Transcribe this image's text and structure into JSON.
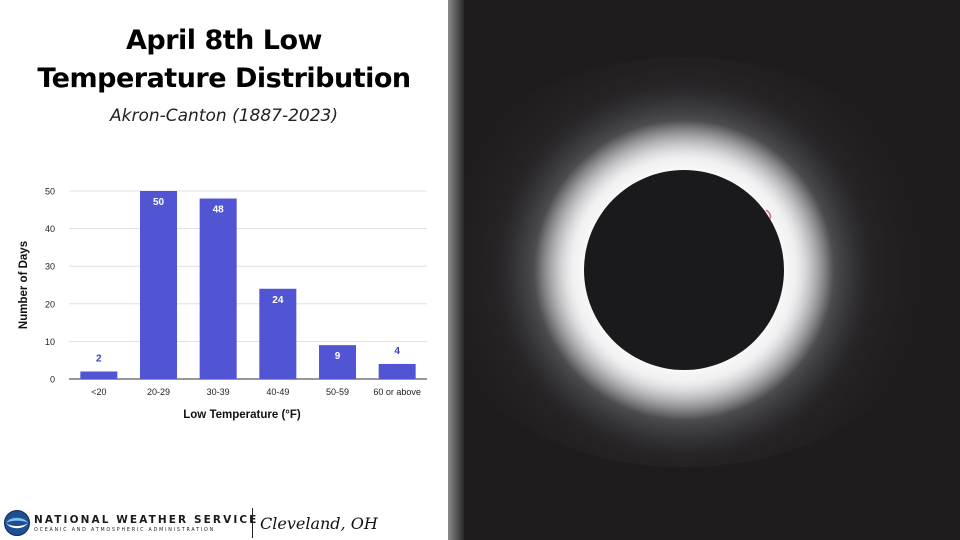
{
  "slide": {
    "title_line1": "April 8th Low",
    "title_line2": "Temperature Distribution",
    "subtitle": "Akron-Canton (1887-2023)"
  },
  "footer": {
    "agency": "NATIONAL WEATHER SERVICE",
    "agency_sub": "OCEANIC AND ATMOSPHERIC ADMINISTRATION",
    "office": "Cleveland, OH"
  },
  "photo": {
    "subject": "total-solar-eclipse",
    "background_color": "#1e1c1d",
    "corona_color": "#ffffff",
    "moon_color": "#1a1a1c"
  },
  "chart_data": {
    "type": "bar",
    "categories": [
      "<20",
      "20-29",
      "30-39",
      "40-49",
      "50-59",
      "60 or above"
    ],
    "values": [
      2,
      50,
      48,
      24,
      9,
      4
    ],
    "title": "",
    "xlabel": "Low Temperature (°F)",
    "ylabel": "Number of Days",
    "ylim": [
      0,
      50
    ],
    "yticks": [
      0,
      10,
      20,
      30,
      40,
      50
    ],
    "grid": true,
    "legend": "none",
    "bar_color": "#5155d3",
    "label_inside_color": "#ffffff",
    "label_outside_color": "#3c40c4"
  }
}
